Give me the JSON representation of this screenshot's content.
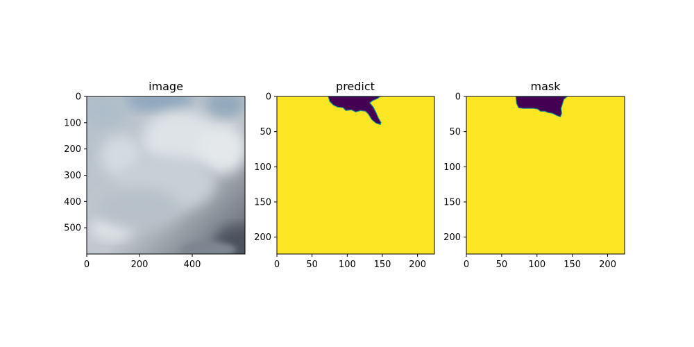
{
  "chart_data": [
    {
      "type": "heatmap",
      "title": "image",
      "xlabel": "",
      "ylabel": "",
      "xlim": [
        0,
        600
      ],
      "ylim": [
        600,
        0
      ],
      "xticks": [
        0,
        200,
        400
      ],
      "yticks": [
        0,
        100,
        200,
        300,
        400,
        500
      ],
      "content": "cloud photograph"
    },
    {
      "type": "heatmap",
      "title": "predict",
      "xlabel": "",
      "ylabel": "",
      "xlim": [
        0,
        224
      ],
      "ylim": [
        224,
        0
      ],
      "xticks": [
        0,
        50,
        100,
        150,
        200
      ],
      "yticks": [
        0,
        50,
        100,
        150,
        200
      ],
      "colors": {
        "background": "#fde725",
        "region": "#440154",
        "edge": "#21918c"
      },
      "region_outline": [
        [
          73,
          0
        ],
        [
          147,
          0
        ],
        [
          143,
          3
        ],
        [
          136,
          6
        ],
        [
          132,
          9
        ],
        [
          137,
          15
        ],
        [
          141,
          23
        ],
        [
          144,
          30
        ],
        [
          148,
          37
        ],
        [
          147,
          40
        ],
        [
          141,
          38
        ],
        [
          135,
          33
        ],
        [
          130,
          25
        ],
        [
          126,
          21
        ],
        [
          119,
          20
        ],
        [
          112,
          22
        ],
        [
          106,
          19
        ],
        [
          98,
          20
        ],
        [
          94,
          16
        ],
        [
          86,
          15
        ],
        [
          80,
          12
        ],
        [
          75,
          7
        ]
      ]
    },
    {
      "type": "heatmap",
      "title": "mask",
      "xlabel": "",
      "ylabel": "",
      "xlim": [
        0,
        224
      ],
      "ylim": [
        224,
        0
      ],
      "xticks": [
        0,
        50,
        100,
        150,
        200
      ],
      "yticks": [
        0,
        50,
        100,
        150,
        200
      ],
      "colors": {
        "background": "#fde725",
        "region": "#440154",
        "edge": "#21918c"
      },
      "region_outline": [
        [
          70,
          0
        ],
        [
          143,
          0
        ],
        [
          138,
          4
        ],
        [
          136,
          11
        ],
        [
          134,
          17
        ],
        [
          135,
          24
        ],
        [
          133,
          29
        ],
        [
          128,
          27
        ],
        [
          122,
          24
        ],
        [
          116,
          23
        ],
        [
          111,
          21
        ],
        [
          105,
          21
        ],
        [
          101,
          18
        ],
        [
          95,
          17
        ],
        [
          88,
          17
        ],
        [
          80,
          17
        ],
        [
          74,
          16
        ],
        [
          71,
          10
        ]
      ]
    }
  ]
}
